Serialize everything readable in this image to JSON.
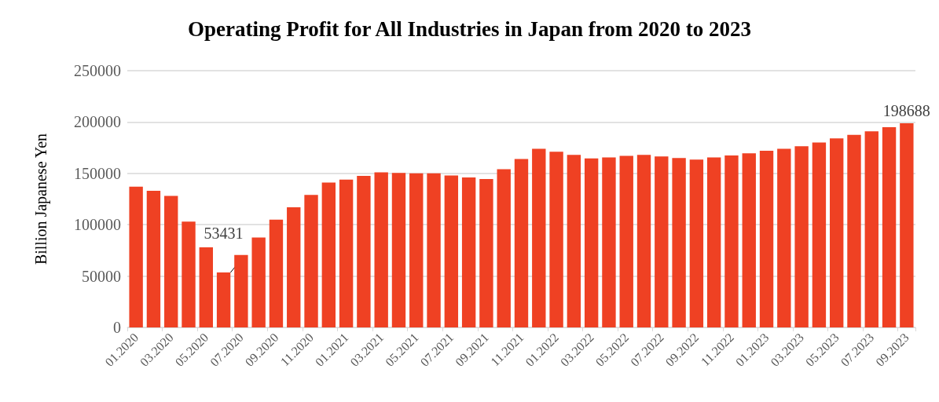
{
  "chart_data": {
    "type": "bar",
    "title": "Operating Profit for All Industries in Japan from 2020 to 2023",
    "ylabel": "Billion Japanese Yen",
    "categories": [
      "01.2020",
      null,
      "03.2020",
      null,
      "05.2020",
      null,
      "07.2020",
      null,
      "09.2020",
      null,
      "11.2020",
      null,
      "01.2021",
      null,
      "03.2021",
      null,
      "05.2021",
      null,
      "07.2021",
      null,
      "09.2021",
      null,
      "11.2021",
      null,
      "01.2022",
      null,
      "03.2022",
      null,
      "05.2022",
      null,
      "07.2022",
      null,
      "09.2022",
      null,
      "11.2022",
      null,
      "01.2023",
      null,
      "03.2023",
      null,
      "05.2023",
      null,
      "07.2023",
      null,
      "09.2023"
    ],
    "values": [
      137000,
      133000,
      128000,
      103000,
      78000,
      53431,
      70500,
      87500,
      105000,
      117000,
      129000,
      141000,
      144000,
      147500,
      151000,
      150500,
      150000,
      150000,
      148000,
      146000,
      144500,
      154000,
      164000,
      174000,
      171000,
      168000,
      164500,
      165500,
      167000,
      168000,
      166500,
      165000,
      163500,
      165500,
      167500,
      169500,
      172000,
      174000,
      176500,
      180000,
      184000,
      187500,
      191000,
      195000,
      198688
    ],
    "value_labels": [
      null,
      null,
      null,
      null,
      null,
      "53431",
      null,
      null,
      null,
      null,
      null,
      null,
      null,
      null,
      null,
      null,
      null,
      null,
      null,
      null,
      null,
      null,
      null,
      null,
      null,
      null,
      null,
      null,
      null,
      null,
      null,
      null,
      null,
      null,
      null,
      null,
      null,
      null,
      null,
      null,
      null,
      null,
      null,
      null,
      "198688"
    ],
    "color": "#ef4123",
    "ylim": [
      0,
      250000
    ],
    "yticks": [
      0,
      50000,
      100000,
      150000,
      200000,
      250000
    ],
    "grid": "y"
  }
}
